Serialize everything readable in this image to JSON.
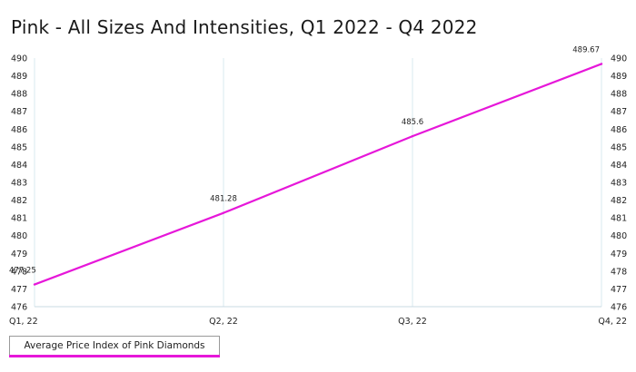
{
  "title": "Pink - All Sizes And Intensities, Q1 2022 - Q4 2022",
  "colors": {
    "series": "#e617d9",
    "grid": "#d9e8ef",
    "axis": "#c9dbe3"
  },
  "chart_data": {
    "type": "line",
    "categories": [
      "Q1, 22",
      "Q2, 22",
      "Q3, 22",
      "Q4, 22"
    ],
    "series": [
      {
        "name": "Average Price Index of Pink Diamonds",
        "values": [
          477.25,
          481.28,
          485.6,
          489.67
        ],
        "labels": [
          "477.25",
          "481.28",
          "485.6",
          "489.67"
        ]
      }
    ],
    "ylim": [
      476,
      490
    ],
    "yticks": [
      "476",
      "477",
      "478",
      "479",
      "480",
      "481",
      "482",
      "483",
      "484",
      "485",
      "486",
      "487",
      "488",
      "489",
      "490"
    ],
    "y_axis_sides": "left-and-right",
    "grid": "vertical",
    "legend_position": "bottom-left"
  }
}
